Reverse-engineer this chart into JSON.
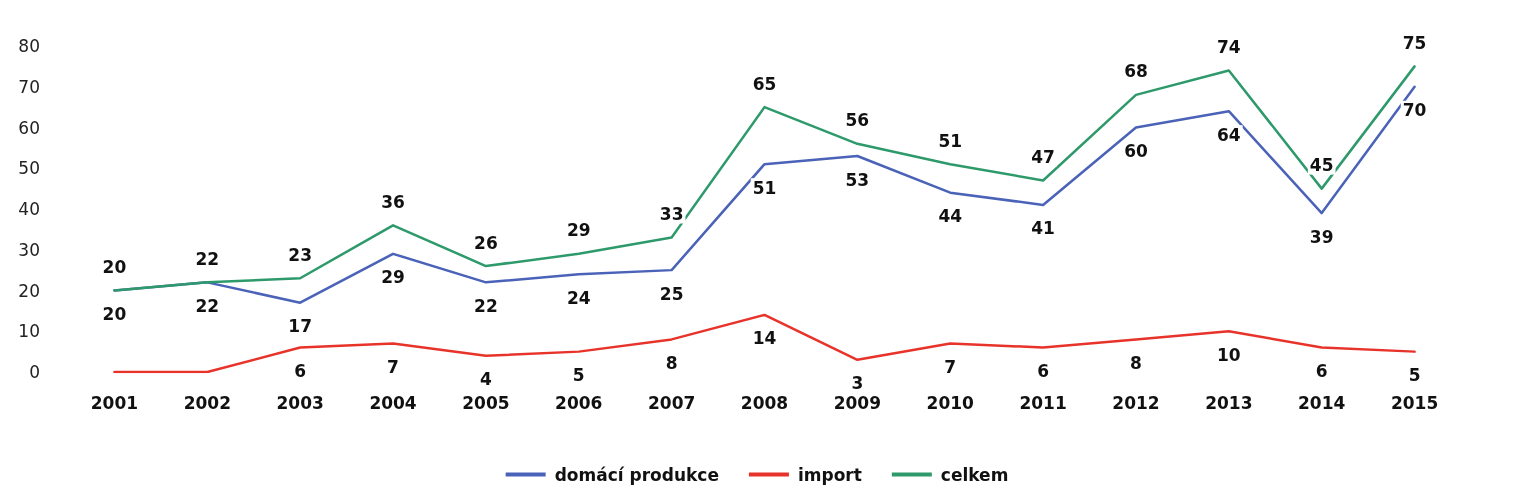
{
  "chart_data": {
    "type": "line",
    "categories": [
      "2001",
      "2002",
      "2003",
      "2004",
      "2005",
      "2006",
      "2007",
      "2008",
      "2009",
      "2010",
      "2011",
      "2012",
      "2013",
      "2014",
      "2015"
    ],
    "series": [
      {
        "name": "domácí produkce",
        "color": "#4a62b8",
        "values": [
          20,
          22,
          17,
          29,
          22,
          24,
          25,
          51,
          53,
          44,
          41,
          60,
          64,
          39,
          70
        ],
        "value_labels": [
          "20",
          "22",
          "17",
          "29",
          "22",
          "24",
          "25",
          "51",
          "53",
          "44",
          "41",
          "60",
          "64",
          "39",
          "70"
        ]
      },
      {
        "name": "import",
        "color": "#e8332b",
        "values": [
          0,
          0,
          6,
          7,
          4,
          5,
          8,
          14,
          3,
          7,
          6,
          8,
          10,
          6,
          5
        ],
        "value_labels": [
          null,
          null,
          "6",
          "7",
          "4",
          "5",
          "8",
          "14",
          "3",
          "7",
          "6",
          "8",
          "10",
          "6",
          "5"
        ]
      },
      {
        "name": "celkem",
        "color": "#2e9a6b",
        "values": [
          20,
          22,
          23,
          36,
          26,
          29,
          33,
          65,
          56,
          51,
          47,
          68,
          74,
          45,
          75
        ],
        "value_labels": [
          "20",
          "22",
          "23",
          "36",
          "26",
          "29",
          "33",
          "65",
          "56",
          "51",
          "47",
          "68",
          "74",
          "45",
          "75"
        ]
      }
    ],
    "ylim": [
      0,
      80
    ],
    "yticks": [
      0,
      10,
      20,
      30,
      40,
      50,
      60,
      70,
      80
    ],
    "legend": "bottom",
    "marker": "none",
    "line_style": "solid"
  }
}
